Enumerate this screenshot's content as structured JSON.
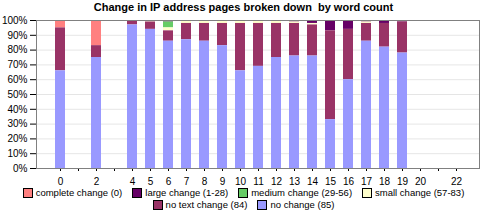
{
  "chart_data": {
    "type": "bar",
    "title": "Change in IP address pages broken down  by word count",
    "stacked": true,
    "grid": true,
    "legend": "bottom",
    "categories": [
      "0",
      null,
      "2",
      null,
      "4",
      "5",
      "6",
      "7",
      "8",
      "9",
      "10",
      "11",
      "12",
      "13",
      "14",
      "15",
      "16",
      "17",
      "18",
      "19",
      "20",
      null,
      "22"
    ],
    "series": [
      {
        "name": "complete change (0)",
        "color": "#ff8080",
        "values": [
          5,
          null,
          17,
          null,
          0,
          0,
          0,
          0,
          0,
          0,
          0,
          0,
          0,
          0,
          0,
          0,
          0,
          0,
          0,
          0,
          null,
          null,
          null
        ]
      },
      {
        "name": "large change (1-28)",
        "color": "#660066",
        "values": [
          0,
          null,
          0,
          null,
          0,
          0,
          1,
          0,
          0,
          0,
          0,
          0,
          0,
          1,
          2,
          7,
          6,
          1,
          2,
          1,
          null,
          null,
          null
        ]
      },
      {
        "name": "medium change (29-56)",
        "color": "#66cc66",
        "values": [
          0,
          null,
          0,
          null,
          0,
          0,
          4,
          0,
          0,
          0,
          0,
          0,
          0,
          0,
          0,
          0,
          0,
          0,
          0,
          0,
          null,
          null,
          null
        ]
      },
      {
        "name": "small change (57-83)",
        "color": "#ffffcc",
        "values": [
          0,
          null,
          0,
          null,
          0,
          1,
          2,
          2,
          2,
          2,
          2,
          2,
          2,
          1,
          1,
          0,
          0,
          1,
          0,
          0,
          null,
          null,
          null
        ]
      },
      {
        "name": "no text change (84)",
        "color": "#993366",
        "values": [
          29,
          null,
          8,
          null,
          3,
          5,
          7,
          11,
          12,
          15,
          32,
          29,
          23,
          22,
          21,
          60,
          34,
          12,
          16,
          21,
          null,
          null,
          null
        ]
      },
      {
        "name": "no change (85)",
        "color": "#9999ff",
        "values": [
          66,
          null,
          75,
          null,
          97,
          94,
          86,
          87,
          86,
          83,
          66,
          69,
          75,
          76,
          76,
          33,
          60,
          86,
          82,
          78,
          null,
          null,
          null
        ]
      }
    ],
    "ylim": [
      0,
      100
    ],
    "yticks": [
      {
        "value": 0,
        "label": "0%"
      },
      {
        "value": 10,
        "label": "10%"
      },
      {
        "value": 20,
        "label": "20%"
      },
      {
        "value": 30,
        "label": "30%"
      },
      {
        "value": 40,
        "label": "40%"
      },
      {
        "value": 50,
        "label": "50%"
      },
      {
        "value": 60,
        "label": "60%"
      },
      {
        "value": 70,
        "label": "70%"
      },
      {
        "value": 80,
        "label": "80%"
      },
      {
        "value": 90,
        "label": "90%"
      },
      {
        "value": 100,
        "label": "100%"
      }
    ]
  }
}
